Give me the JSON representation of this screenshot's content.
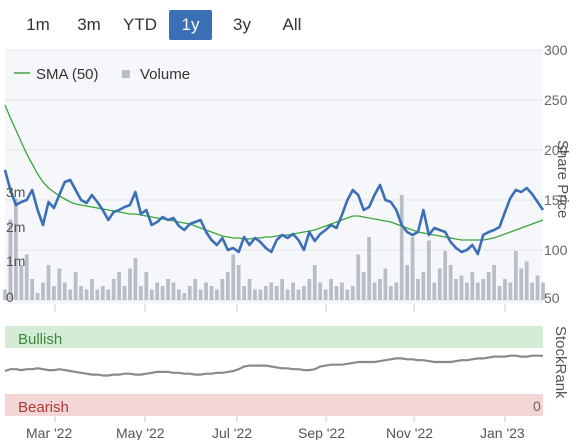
{
  "range_buttons": [
    {
      "label": "1m",
      "active": false
    },
    {
      "label": "3m",
      "active": false
    },
    {
      "label": "YTD",
      "active": false
    },
    {
      "label": "1y",
      "active": true
    },
    {
      "label": "3y",
      "active": false
    },
    {
      "label": "All",
      "active": false
    }
  ],
  "legend": {
    "sma_label": "SMA (50)",
    "volume_label": "Volume"
  },
  "price_axis": {
    "title": "Share Price",
    "ticks": [
      "300",
      "250",
      "200",
      "150",
      "100",
      "50"
    ]
  },
  "volume_axis": {
    "ticks": [
      "3m",
      "2m",
      "1m",
      "0"
    ]
  },
  "stockrank_axis": {
    "title": "StockRank",
    "tick_zero": "0"
  },
  "stockrank_bands": {
    "bullish": "Bullish",
    "bearish": "Bearish"
  },
  "x_axis": {
    "labels": [
      "Mar '22",
      "May '22",
      "Jul '22",
      "Sep '22",
      "Nov '22",
      "Jan '23"
    ]
  },
  "colors": {
    "price": "#3b6fb6",
    "sma": "#3aa63a",
    "volume": "#b9bec6",
    "bullish": "#d4ecd6",
    "bearish": "#f4d6d6",
    "rank": "#8a8a8a",
    "active": "#3b6fb6"
  },
  "chart_data": [
    {
      "type": "line",
      "x_labels": [
        "Mar '22",
        "May '22",
        "Jul '22",
        "Sep '22",
        "Nov '22",
        "Jan '23"
      ],
      "ylim": [
        50,
        300
      ],
      "y_ticks": [
        300,
        250,
        200,
        150,
        100,
        50
      ],
      "series": [
        {
          "name": "Share Price",
          "values": [
            180,
            160,
            145,
            148,
            150,
            160,
            140,
            125,
            148,
            142,
            155,
            168,
            170,
            160,
            150,
            147,
            155,
            148,
            140,
            130,
            138,
            140,
            143,
            145,
            158,
            136,
            140,
            125,
            128,
            133,
            130,
            132,
            124,
            120,
            126,
            128,
            130,
            118,
            110,
            105,
            112,
            100,
            102,
            98,
            113,
            105,
            112,
            108,
            102,
            98,
            110,
            115,
            112,
            116,
            110,
            100,
            118,
            109,
            116,
            120,
            125,
            122,
            135,
            150,
            160,
            155,
            140,
            143,
            155,
            165,
            150,
            148,
            140,
            125,
            118,
            115,
            118,
            140,
            115,
            122,
            120,
            118,
            108,
            102,
            98,
            100,
            105,
            96,
            115,
            118,
            120,
            123,
            138,
            152,
            160,
            158,
            162,
            156,
            148,
            140
          ]
        },
        {
          "name": "SMA (50)",
          "values": [
            245,
            232,
            220,
            208,
            196,
            186,
            176,
            168,
            162,
            158,
            154,
            151,
            148,
            146,
            145,
            144,
            143,
            142,
            141,
            140,
            139,
            138,
            137,
            136,
            136,
            135,
            134,
            133,
            132,
            131,
            130,
            129,
            128,
            127,
            126,
            124,
            122,
            120,
            118,
            116,
            114,
            113,
            112,
            112,
            111,
            111,
            112,
            112,
            113,
            113,
            114,
            115,
            115,
            116,
            117,
            118,
            119,
            120,
            122,
            124,
            126,
            128,
            130,
            132,
            134,
            134,
            133,
            132,
            131,
            130,
            129,
            128,
            126,
            124,
            122,
            120,
            118,
            117,
            116,
            115,
            114,
            113,
            112,
            111,
            110,
            110,
            110,
            110,
            110,
            111,
            112,
            114,
            116,
            118,
            120,
            122,
            124,
            126,
            128,
            130
          ]
        },
        {
          "name": "Volume",
          "values": [
            0.3,
            2.3,
            2.9,
            1.0,
            1.3,
            0.6,
            0.2,
            0.5,
            1.0,
            0.4,
            0.9,
            0.5,
            0.3,
            0.8,
            0.4,
            0.3,
            0.6,
            0.3,
            0.4,
            0.3,
            0.6,
            0.8,
            0.4,
            0.9,
            1.2,
            0.4,
            0.8,
            0.3,
            0.5,
            0.4,
            0.6,
            0.5,
            0.3,
            0.2,
            0.4,
            0.6,
            0.3,
            0.5,
            0.4,
            0.3,
            0.6,
            0.8,
            1.3,
            1.0,
            0.4,
            0.6,
            0.3,
            0.3,
            0.4,
            0.5,
            0.4,
            0.6,
            0.3,
            0.5,
            0.3,
            0.4,
            0.6,
            1.0,
            0.5,
            0.3,
            0.6,
            0.4,
            0.5,
            0.3,
            0.4,
            1.3,
            0.8,
            1.8,
            0.5,
            0.6,
            0.9,
            0.4,
            0.5,
            3.0,
            1.0,
            1.8,
            0.6,
            0.8,
            1.7,
            0.5,
            0.9,
            1.4,
            1.0,
            0.6,
            0.7,
            0.5,
            0.8,
            0.5,
            0.6,
            0.8,
            1.0,
            0.4,
            0.6,
            0.5,
            1.4,
            0.9,
            1.1,
            0.5,
            0.7,
            0.5
          ]
        }
      ]
    },
    {
      "type": "line",
      "x_labels": [
        "Mar '22",
        "May '22",
        "Jul '22",
        "Sep '22",
        "Nov '22",
        "Jan '23"
      ],
      "ylim": [
        0,
        100
      ],
      "series": [
        {
          "name": "StockRank",
          "values": [
            50,
            52,
            52,
            51,
            52,
            52,
            53,
            52,
            51,
            51,
            52,
            51,
            50,
            49,
            48,
            47,
            46,
            46,
            45,
            45,
            46,
            46,
            47,
            47,
            46,
            46,
            47,
            48,
            49,
            49,
            49,
            48,
            48,
            47,
            47,
            46,
            46,
            47,
            47,
            48,
            48,
            49,
            50,
            52,
            55,
            56,
            56,
            56,
            56,
            55,
            54,
            53,
            53,
            52,
            52,
            51,
            51,
            52,
            55,
            56,
            57,
            57,
            57,
            58,
            59,
            60,
            60,
            60,
            60,
            61,
            62,
            63,
            64,
            64,
            63,
            63,
            62,
            62,
            61,
            60,
            60,
            60,
            60,
            61,
            62,
            62,
            63,
            64,
            64,
            65,
            66,
            66,
            66,
            67,
            67,
            66,
            66,
            67,
            67,
            67
          ]
        }
      ]
    }
  ]
}
